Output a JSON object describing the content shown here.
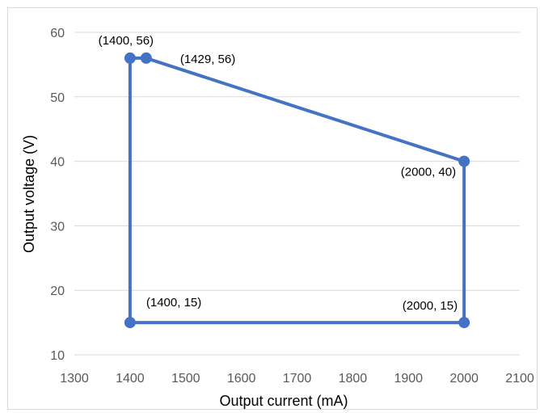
{
  "chart_data": {
    "type": "line",
    "title": "",
    "xlabel": "Output current (mA)",
    "ylabel": "Output voltage (V)",
    "xlim": [
      1300,
      2100
    ],
    "ylim": [
      10,
      60
    ],
    "xticks": [
      "1300",
      "1400",
      "1500",
      "1600",
      "1700",
      "1800",
      "1900",
      "2000",
      "2100"
    ],
    "yticks": [
      "10",
      "20",
      "30",
      "40",
      "50",
      "60"
    ],
    "grid": "horizontal",
    "legend": "none",
    "color": "#4472C4",
    "series": [
      {
        "points": [
          {
            "x": 1400,
            "y": 15,
            "label": "(1400, 15)"
          },
          {
            "x": 1400,
            "y": 56,
            "label": "(1400, 56)"
          },
          {
            "x": 1429,
            "y": 56,
            "label": "(1429, 56)"
          },
          {
            "x": 2000,
            "y": 40,
            "label": "(2000, 40)"
          },
          {
            "x": 2000,
            "y": 15,
            "label": "(2000, 15)"
          }
        ],
        "closed": true
      }
    ]
  }
}
